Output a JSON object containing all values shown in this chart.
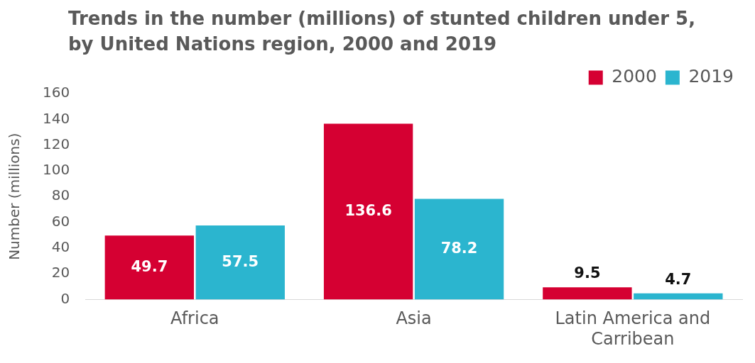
{
  "chart_data": {
    "type": "bar",
    "title": "Trends in the number (millions) of stunted children under 5, by United Nations region, 2000 and 2019",
    "ylabel": "Number (millions)",
    "categories": [
      "Africa",
      "Asia",
      "Latin America and Carribean"
    ],
    "series": [
      {
        "name": "2000",
        "color": "#d50032",
        "values": [
          49.7,
          136.6,
          9.5
        ]
      },
      {
        "name": "2019",
        "color": "#2bb5cf",
        "values": [
          57.5,
          78.2,
          4.7
        ]
      }
    ],
    "ylim": [
      0,
      160
    ],
    "yticks": [
      0,
      20,
      40,
      60,
      80,
      100,
      120,
      140,
      160
    ],
    "grid": false,
    "legend": "top right",
    "data_labels": true
  }
}
